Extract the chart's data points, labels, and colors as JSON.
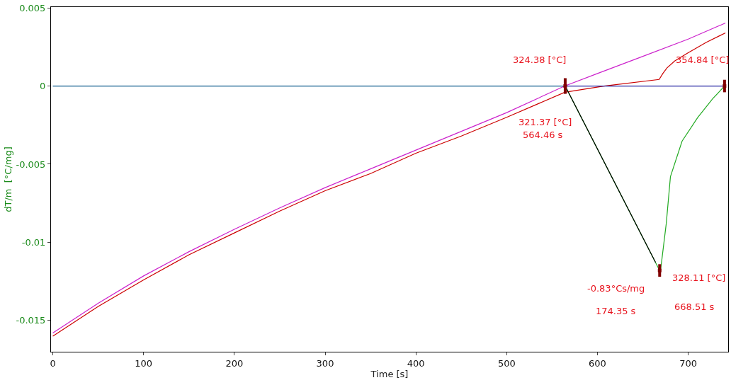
{
  "chart_data": {
    "type": "line",
    "xlabel": "Time [s]",
    "ylabel": "dT/m  [°C/mg]",
    "xlim": [
      -2,
      744
    ],
    "xticks": [
      0,
      100,
      200,
      300,
      400,
      500,
      600,
      700
    ],
    "ylim": [
      -0.017,
      0.00505
    ],
    "yticks": [
      0.005,
      0,
      -0.005,
      -0.01,
      -0.015
    ],
    "marker": "none",
    "line_style": "solid",
    "series": [
      {
        "color": "#cc22cc",
        "x": [
          0,
          50,
          100,
          150,
          200,
          250,
          300,
          350,
          400,
          450,
          500,
          564,
          600,
          650,
          700,
          741
        ],
        "values": [
          -0.0158,
          -0.0139,
          -0.01215,
          -0.0106,
          -0.00917,
          -0.0078,
          -0.0065,
          -0.0053,
          -0.0041,
          -0.0029,
          -0.0017,
          0,
          0.0008,
          0.0019,
          0.003,
          0.00403
        ]
      },
      {
        "color": "#cc0000",
        "x": [
          0,
          50,
          100,
          150,
          200,
          250,
          300,
          350,
          400,
          450,
          500,
          564,
          607,
          668,
          672,
          676.5,
          685,
          699,
          720,
          741
        ],
        "values": [
          -0.016,
          -0.0141,
          -0.0124,
          -0.0108,
          -0.0094,
          -0.008,
          -0.0067,
          -0.0056,
          -0.0043,
          -0.0032,
          -0.002,
          -0.0004,
          0,
          0.00042,
          0.0008,
          0.00115,
          0.0016,
          0.0021,
          0.0028,
          0.0034
        ]
      },
      {
        "color": "#0b5a8a",
        "x": [
          0,
          564.46
        ],
        "values": [
          0,
          0
        ]
      },
      {
        "color": "#2020a0",
        "x": [
          564.46,
          741
        ],
        "values": [
          0,
          0
        ]
      },
      {
        "color": "#22aa22",
        "x": [
          564.46,
          668.51,
          669.5,
          675.8,
          680.4,
          693.2,
          710.4,
          727,
          740
        ],
        "values": [
          0,
          -0.0118,
          -0.0118,
          -0.0088,
          -0.0058,
          -0.00353,
          -0.00202,
          -0.00081,
          0
        ]
      },
      {
        "color": "#000000",
        "x": [
          564.46,
          664
        ],
        "values": [
          0,
          -0.01128
        ]
      },
      {
        "type": "scatter",
        "color": "#800000",
        "marker": "square",
        "x": [
          564.46,
          668.51,
          740
        ],
        "values": [
          0,
          -0.0118,
          0
        ],
        "errors": [
          0.0005,
          0.0004,
          0.0004
        ]
      }
    ],
    "annotations": [
      "324.38 [°C]",
      "354.84 [°C]",
      "321.37 [°C]",
      "564.46 s",
      "328.11 [°C]",
      "-0.83°Cs/mg",
      "174.35 s",
      "668.51 s"
    ]
  }
}
